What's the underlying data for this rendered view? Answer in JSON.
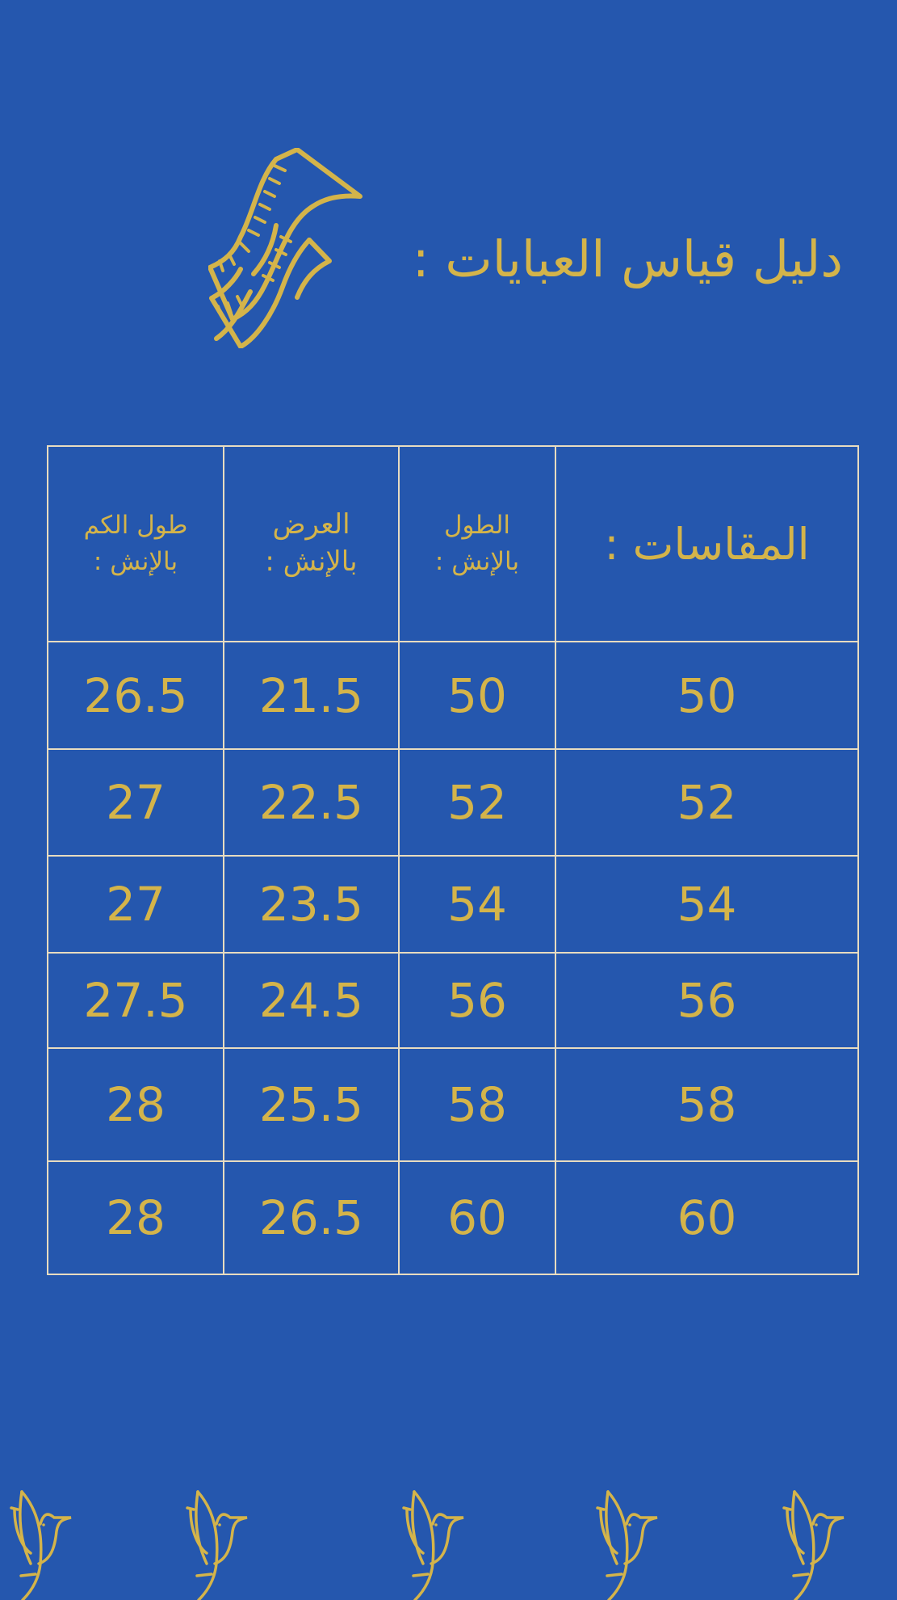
{
  "title": "دليل قياس العبايات :",
  "colors": {
    "background": "#2557ae",
    "accent": "#d4b44a",
    "grid": "#e8dcc0"
  },
  "icons": {
    "header": "measuring-tape-icon",
    "footer": "bird-icon"
  },
  "table": {
    "headers": [
      "طول الكم بالإنش :",
      "العرض بالإنش :",
      "الطول بالإنش :",
      "المقاسات :"
    ],
    "header_lines": [
      [
        "طول الكم",
        "بالإنش :"
      ],
      [
        "العرض",
        "بالإنش :"
      ],
      [
        "الطول",
        "بالإنش :"
      ],
      [
        "المقاسات :"
      ]
    ],
    "rows": [
      [
        "26.5",
        "21.5",
        "50",
        "50"
      ],
      [
        "27",
        "22.5",
        "52",
        "52"
      ],
      [
        "27",
        "23.5",
        "54",
        "54"
      ],
      [
        "27.5",
        "24.5",
        "56",
        "56"
      ],
      [
        "28",
        "25.5",
        "58",
        "58"
      ],
      [
        "28",
        "26.5",
        "60",
        "60"
      ]
    ]
  }
}
